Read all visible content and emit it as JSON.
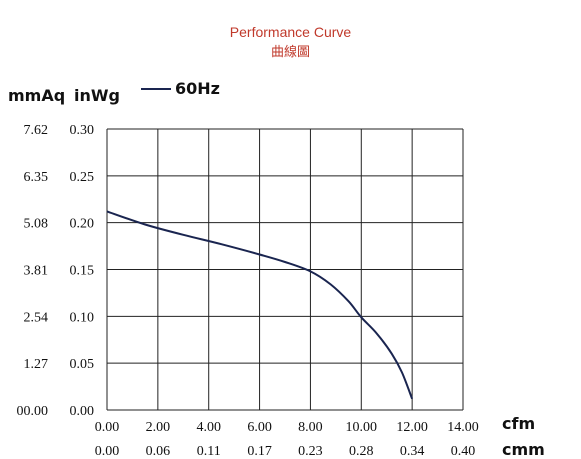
{
  "chart_data": {
    "type": "line",
    "title": "Performance Curve",
    "subtitle": "曲線圖",
    "y_units": [
      "mmAq",
      "inWg"
    ],
    "x_units": [
      "cfm",
      "cmm"
    ],
    "xlim": [
      0,
      14
    ],
    "ylim": [
      0,
      0.3
    ],
    "grid": true,
    "legend_position": "top-left",
    "x_ticks_cfm": [
      "0.00",
      "2.00",
      "4.00",
      "6.00",
      "8.00",
      "10.00",
      "12.00",
      "14.00"
    ],
    "x_ticks_cmm": [
      "0.00",
      "0.06",
      "0.11",
      "0.17",
      "0.23",
      "0.28",
      "0.34",
      "0.40"
    ],
    "y_ticks_inwg": [
      "0.00",
      "0.05",
      "0.10",
      "0.15",
      "0.20",
      "0.25",
      "0.30"
    ],
    "y_ticks_mmaq": [
      "00.00",
      "1.27",
      "2.54",
      "3.81",
      "5.08",
      "6.35",
      "7.62"
    ],
    "series": [
      {
        "name": "60Hz",
        "color": "#1a2550",
        "x": [
          0.0,
          1.5,
          3.0,
          4.5,
          6.0,
          7.0,
          8.0,
          8.8,
          9.5,
          10.0,
          10.6,
          11.2,
          11.6,
          12.0
        ],
        "y": [
          0.212,
          0.198,
          0.187,
          0.177,
          0.166,
          0.158,
          0.148,
          0.134,
          0.116,
          0.099,
          0.082,
          0.06,
          0.04,
          0.012
        ]
      }
    ]
  }
}
